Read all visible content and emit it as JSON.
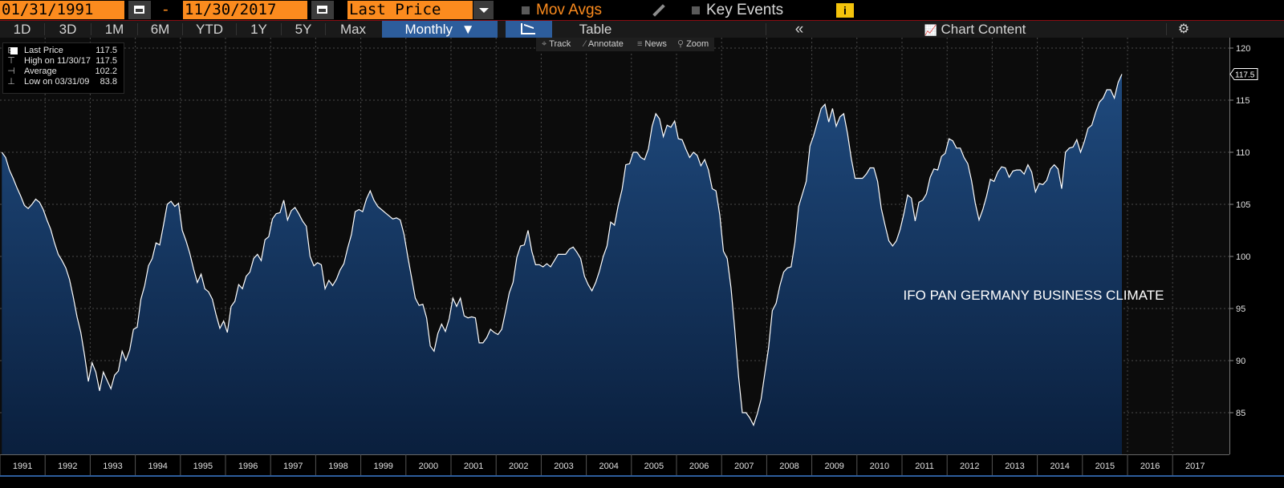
{
  "toolbar": {
    "start_date": "01/31/1991",
    "end_date": "11/30/2017",
    "field": "Last Price",
    "mov_avgs_label": "Mov Avgs",
    "key_events_label": "Key Events",
    "info_icon": "i",
    "colors": {
      "field_bg": "#fb8b1e",
      "accent": "#fb8b1e",
      "info_bg": "#f4c40c"
    }
  },
  "range_bar": {
    "buttons": [
      "1D",
      "3D",
      "1M",
      "6M",
      "YTD",
      "1Y",
      "5Y",
      "Max"
    ],
    "frequency": "Monthly",
    "table_label": "Table",
    "collapse_icon": "«",
    "chart_content_label": "Chart Content",
    "settings_icon": "⚙",
    "colors": {
      "active_bg": "#2d5d9c"
    }
  },
  "sub_tools": {
    "track": "Track",
    "annotate": "Annotate",
    "news": "News",
    "zoom": "Zoom"
  },
  "legend": {
    "last_label": "Last Price",
    "last_value": "117.5",
    "high_label": "High on 11/30/17",
    "high_value": "117.5",
    "avg_label": "Average",
    "avg_value": "102.2",
    "low_label": "Low on 03/31/09",
    "low_value": "83.8"
  },
  "chart_data": {
    "type": "area",
    "annotation": "IFO PAN GERMANY BUSINESS CLIMATE",
    "last_value_label": "117.5",
    "x_start": "1991-01",
    "x_frequency": "monthly",
    "ylim": [
      81,
      121
    ],
    "yticks": [
      85,
      90,
      95,
      100,
      105,
      110,
      115,
      120
    ],
    "xtick_labels": [
      "1991",
      "1992",
      "1993",
      "1994",
      "1995",
      "1996",
      "1997",
      "1998",
      "1999",
      "2000",
      "2001",
      "2002",
      "2003",
      "2004",
      "2005",
      "2006",
      "2007",
      "2008",
      "2009",
      "2010",
      "2011",
      "2012",
      "2013",
      "2014",
      "2015",
      "2016",
      "2017"
    ],
    "grid": true,
    "colors": {
      "line": "#ffffff",
      "fill_top": "#1f4a7e",
      "fill_bottom": "#0a1f3d",
      "plot_bg": "#0c0c0c"
    },
    "series": [
      {
        "values": [
          110.0,
          109.5,
          108.3,
          107.5,
          106.6,
          105.8,
          104.9,
          104.6,
          105.0,
          105.5,
          105.2,
          104.5,
          103.5,
          102.6,
          101.3,
          100.2,
          99.6,
          98.9,
          97.8,
          96.1,
          94.2,
          92.7,
          90.5,
          88.0,
          89.8,
          88.9,
          87.1,
          88.9,
          88.1,
          87.3,
          88.6,
          89.0,
          90.9,
          90.0,
          91.0,
          93.0,
          93.2,
          95.9,
          97.2,
          99.1,
          99.8,
          101.3,
          101.1,
          103.0,
          105.0,
          105.3,
          104.8,
          105.1,
          102.5,
          101.5,
          100.3,
          98.8,
          97.5,
          98.3,
          96.9,
          96.6,
          95.9,
          94.4,
          93.1,
          93.8,
          92.7,
          95.2,
          95.7,
          97.3,
          96.9,
          98.1,
          98.5,
          99.8,
          100.2,
          99.6,
          101.6,
          101.9,
          103.6,
          104.1,
          104.2,
          105.4,
          103.5,
          104.4,
          104.7,
          104.1,
          103.4,
          102.9,
          100.0,
          99.1,
          99.4,
          99.2,
          96.9,
          97.7,
          97.2,
          97.8,
          98.7,
          99.3,
          100.8,
          102.1,
          104.3,
          104.5,
          104.3,
          105.5,
          106.3,
          105.4,
          104.8,
          104.5,
          104.2,
          103.9,
          103.6,
          103.7,
          103.5,
          102.1,
          100.0,
          98.0,
          96.0,
          95.3,
          95.4,
          94.1,
          91.4,
          90.9,
          92.6,
          93.5,
          92.8,
          94.0,
          96.0,
          95.2,
          96.0,
          94.3,
          94.1,
          94.2,
          94.1,
          91.7,
          91.7,
          92.2,
          93.0,
          92.7,
          92.5,
          93.0,
          94.7,
          96.5,
          97.5,
          99.9,
          101.0,
          101.1,
          102.5,
          100.5,
          99.2,
          99.2,
          99.0,
          99.3,
          99.0,
          99.6,
          100.2,
          100.2,
          100.2,
          100.7,
          100.9,
          100.4,
          99.8,
          98.1,
          97.3,
          96.7,
          97.5,
          98.6,
          100.0,
          101.0,
          103.3,
          103.0,
          104.9,
          106.4,
          108.8,
          108.9,
          110.0,
          110.0,
          109.5,
          109.3,
          110.3,
          112.5,
          113.7,
          113.2,
          111.5,
          112.6,
          112.4,
          113.0,
          111.3,
          111.2,
          110.3,
          109.5,
          110.0,
          109.7,
          108.7,
          109.3,
          108.3,
          106.5,
          106.3,
          104.0,
          100.5,
          99.8,
          97.0,
          93.0,
          88.5,
          85.0,
          85.0,
          84.5,
          83.8,
          84.9,
          86.3,
          88.8,
          91.2,
          94.8,
          95.5,
          97.2,
          98.5,
          98.9,
          99.0,
          101.3,
          104.8,
          106.0,
          107.2,
          110.6,
          111.6,
          112.9,
          114.2,
          114.6,
          112.9,
          114.2,
          112.5,
          113.4,
          113.7,
          111.8,
          109.4,
          107.5,
          107.5,
          107.5,
          107.9,
          108.5,
          108.5,
          107.2,
          104.6,
          103.0,
          101.5,
          101.0,
          101.5,
          102.6,
          104.1,
          105.9,
          105.6,
          103.4,
          105.2,
          105.4,
          106.0,
          107.6,
          108.4,
          108.3,
          109.6,
          109.9,
          111.3,
          111.1,
          110.4,
          110.4,
          109.5,
          108.9,
          107.3,
          105.1,
          103.5,
          104.5,
          105.8,
          107.4,
          107.2,
          108.1,
          108.6,
          108.5,
          107.6,
          108.2,
          108.3,
          108.3,
          107.9,
          108.8,
          108.1,
          106.2,
          107.0,
          106.9,
          107.3,
          108.4,
          108.8,
          108.4,
          106.5,
          110.0,
          110.4,
          110.5,
          111.2,
          110.0,
          111.0,
          112.3,
          112.6,
          113.8,
          114.8,
          115.2,
          116.0,
          116.0,
          115.2,
          116.7,
          117.5
        ]
      }
    ]
  }
}
